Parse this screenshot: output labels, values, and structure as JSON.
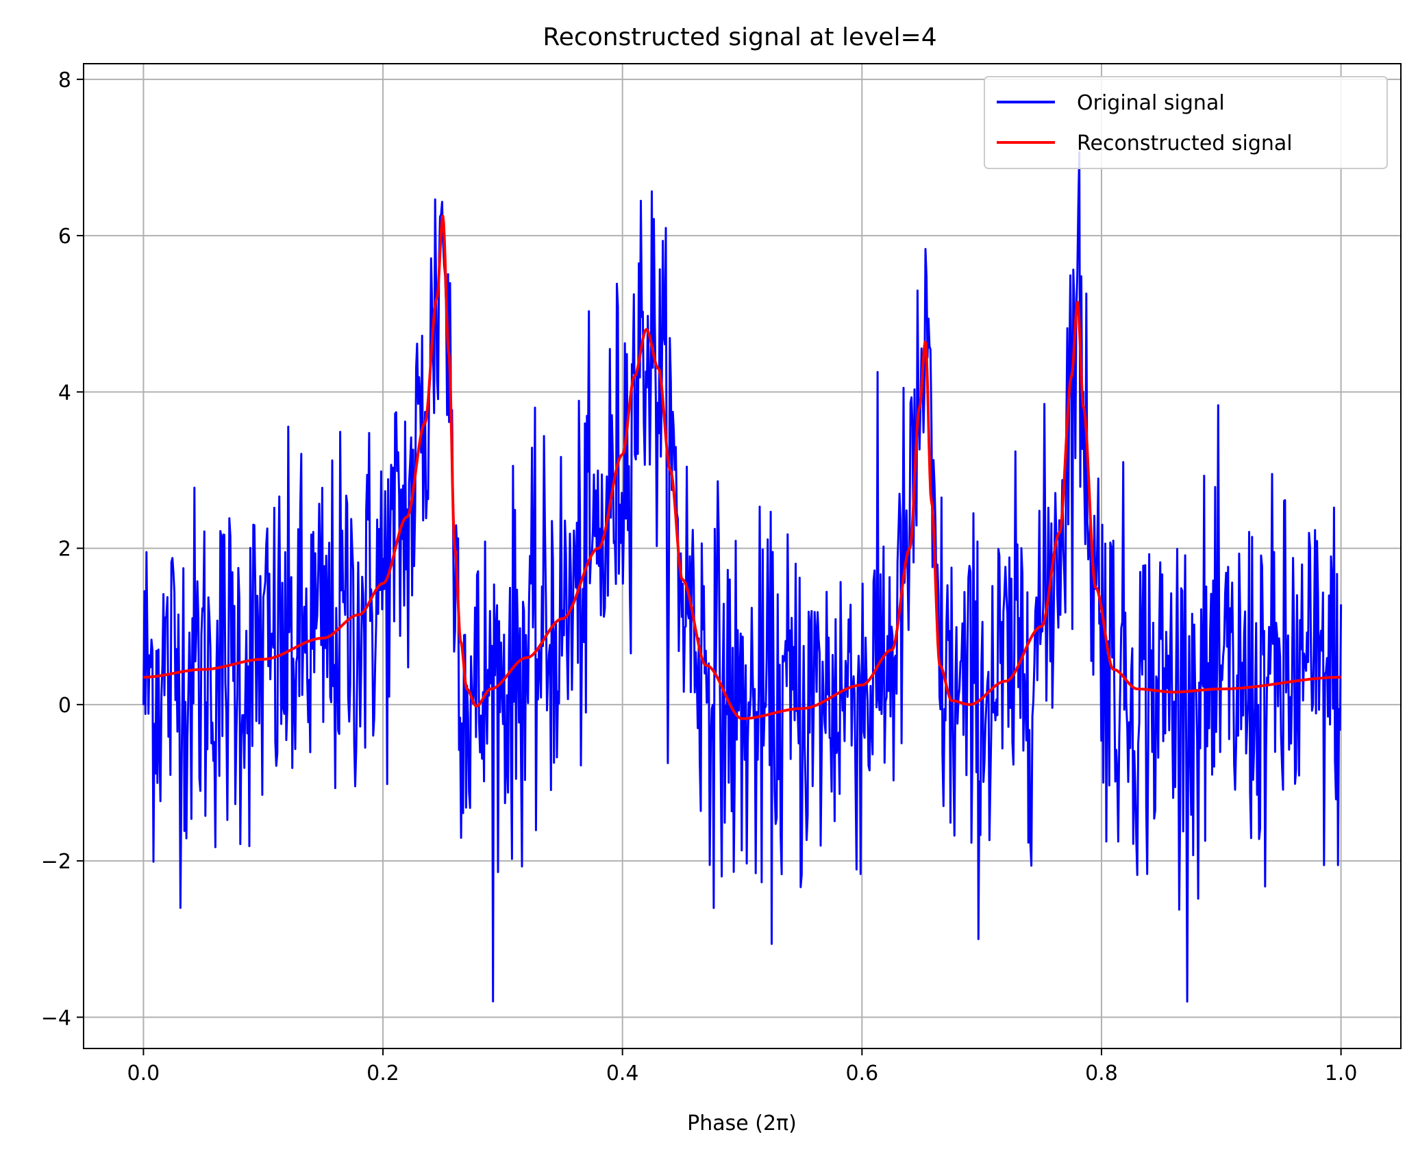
{
  "chart_data": {
    "type": "line",
    "title": "Reconstructed signal at level=4",
    "xlabel": "Phase (2π)",
    "ylabel": "",
    "xlim": [
      -0.05,
      1.05
    ],
    "ylim": [
      -4.4,
      8.2
    ],
    "xticks": [
      0.0,
      0.2,
      0.4,
      0.6,
      0.8,
      1.0
    ],
    "xtick_labels": [
      "0.0",
      "0.2",
      "0.4",
      "0.6",
      "0.8",
      "1.0"
    ],
    "yticks": [
      -4,
      -2,
      0,
      2,
      4,
      6,
      8
    ],
    "ytick_labels": [
      "−4",
      "−2",
      "0",
      "2",
      "4",
      "6",
      "8"
    ],
    "grid": true,
    "legend_position": "top-right",
    "colors": {
      "original": "#0000ff",
      "reconstructed": "#ff0000",
      "grid": "#b0b0b0"
    },
    "series": [
      {
        "name": "Original signal",
        "color": "#0000ff",
        "generated": "noisy samples around the reconstructed curve",
        "sample_count": 1200,
        "noise_std": 1.15,
        "min": -3.8,
        "max": 7.7
      },
      {
        "name": "Reconstructed signal",
        "color": "#ff0000",
        "x": [
          0.0,
          0.05,
          0.1,
          0.15,
          0.18,
          0.2,
          0.22,
          0.235,
          0.245,
          0.25,
          0.255,
          0.26,
          0.265,
          0.27,
          0.278,
          0.29,
          0.32,
          0.35,
          0.38,
          0.4,
          0.41,
          0.42,
          0.43,
          0.44,
          0.45,
          0.47,
          0.5,
          0.55,
          0.6,
          0.625,
          0.64,
          0.648,
          0.653,
          0.658,
          0.665,
          0.675,
          0.69,
          0.72,
          0.75,
          0.765,
          0.775,
          0.78,
          0.785,
          0.795,
          0.81,
          0.83,
          0.86,
          0.9,
          1.0
        ],
        "y": [
          0.35,
          0.45,
          0.58,
          0.85,
          1.15,
          1.55,
          2.4,
          3.6,
          5.2,
          6.25,
          4.5,
          2.0,
          0.8,
          0.2,
          -0.02,
          0.2,
          0.6,
          1.1,
          2.0,
          3.2,
          4.2,
          4.8,
          4.3,
          3.0,
          1.6,
          0.5,
          -0.18,
          -0.05,
          0.25,
          0.7,
          2.0,
          3.8,
          4.65,
          2.6,
          0.5,
          0.05,
          0.0,
          0.3,
          1.0,
          2.2,
          4.2,
          5.15,
          3.8,
          1.5,
          0.45,
          0.2,
          0.16,
          0.2,
          0.35
        ]
      }
    ]
  }
}
